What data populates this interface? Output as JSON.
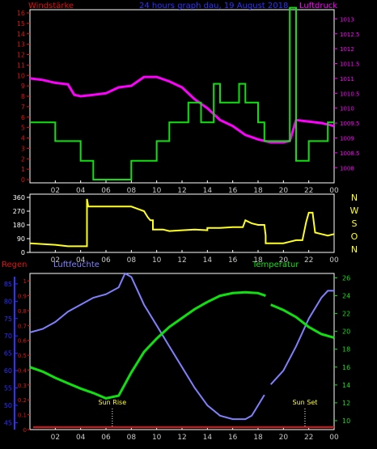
{
  "title": "24 hours graph dau, 19 August  2018",
  "colors": {
    "red": "#e01010",
    "blue": "#3030ff",
    "magenta": "#ff00ff",
    "green": "#10e010",
    "yellow": "#ffff20",
    "periwinkle": "#8080ff",
    "white": "#ffffff",
    "axisText": "#c8c8c8"
  },
  "hour_labels": [
    "02",
    "04",
    "06",
    "08",
    "10",
    "12",
    "14",
    "16",
    "18",
    "20",
    "22",
    "00"
  ],
  "chart_data": [
    {
      "type": "line",
      "title": "24 hours graph dau, 19 August  2018",
      "xlabel": "",
      "x_unit": "hour",
      "xlim": [
        0,
        24
      ],
      "series": [
        {
          "name": "Windstärke",
          "axis": "left",
          "ylim": [
            0,
            16
          ],
          "yticks": [
            0,
            1,
            2,
            3,
            4,
            5,
            6,
            7,
            8,
            9,
            10,
            11,
            12,
            13,
            14,
            15,
            16
          ],
          "step": true,
          "points": [
            [
              0,
              5.5
            ],
            [
              2,
              5.5
            ],
            [
              2,
              3.7
            ],
            [
              4,
              3.7
            ],
            [
              4,
              1.8
            ],
            [
              5,
              1.8
            ],
            [
              5,
              0
            ],
            [
              8,
              0
            ],
            [
              8,
              1.8
            ],
            [
              10,
              1.8
            ],
            [
              10,
              3.7
            ],
            [
              11,
              3.7
            ],
            [
              11,
              5.5
            ],
            [
              12.5,
              5.5
            ],
            [
              12.5,
              7.4
            ],
            [
              13.5,
              7.4
            ],
            [
              13.5,
              5.5
            ],
            [
              14.5,
              5.5
            ],
            [
              14.5,
              9.2
            ],
            [
              15,
              9.2
            ],
            [
              15,
              7.4
            ],
            [
              16.5,
              7.4
            ],
            [
              16.5,
              9.2
            ],
            [
              17,
              9.2
            ],
            [
              17,
              7.4
            ],
            [
              18,
              7.4
            ],
            [
              18,
              5.5
            ],
            [
              18.5,
              5.5
            ],
            [
              18.5,
              3.7
            ],
            [
              20.5,
              3.7
            ],
            [
              20.5,
              16.5
            ],
            [
              21,
              16.5
            ],
            [
              21,
              1.8
            ],
            [
              22,
              1.8
            ],
            [
              22,
              3.7
            ],
            [
              23.5,
              3.7
            ],
            [
              23.5,
              5.5
            ],
            [
              24,
              5.5
            ]
          ]
        },
        {
          "name": "Luftdruck",
          "axis": "right",
          "ylim": [
            1007.6,
            1013.2
          ],
          "yticks": [
            1008,
            1008.5,
            1009,
            1009.5,
            1010,
            1010.5,
            1011,
            1011.5,
            1012,
            1012.5,
            1013
          ],
          "points": [
            [
              0,
              1011
            ],
            [
              1,
              1010.95
            ],
            [
              2,
              1010.85
            ],
            [
              3,
              1010.8
            ],
            [
              3.5,
              1010.45
            ],
            [
              4,
              1010.4
            ],
            [
              5,
              1010.45
            ],
            [
              6,
              1010.5
            ],
            [
              7,
              1010.7
            ],
            [
              8,
              1010.75
            ],
            [
              9,
              1011.05
            ],
            [
              10,
              1011.05
            ],
            [
              11,
              1010.9
            ],
            [
              12,
              1010.7
            ],
            [
              13,
              1010.3
            ],
            [
              14,
              1010
            ],
            [
              15,
              1009.6
            ],
            [
              16,
              1009.4
            ],
            [
              17,
              1009.1
            ],
            [
              18,
              1008.95
            ],
            [
              19,
              1008.85
            ],
            [
              20,
              1008.85
            ],
            [
              20.5,
              1008.9
            ],
            [
              21,
              1009.6
            ],
            [
              22,
              1009.55
            ],
            [
              23,
              1009.5
            ],
            [
              24,
              1009.4
            ]
          ]
        }
      ]
    },
    {
      "type": "line",
      "title": "",
      "xlabel": "",
      "xlim": [
        0,
        24
      ],
      "ylim": [
        0,
        360
      ],
      "yticks": [
        0,
        90,
        180,
        270,
        360
      ],
      "side_labels": [
        "N",
        "W",
        "S",
        "O",
        "N"
      ],
      "series": [
        {
          "name": "",
          "step": true,
          "points": [
            [
              0,
              60
            ],
            [
              2,
              50
            ],
            [
              3,
              40
            ],
            [
              4.5,
              40
            ],
            [
              4.5,
              350
            ],
            [
              4.6,
              300
            ],
            [
              8,
              300
            ],
            [
              8.5,
              285
            ],
            [
              9,
              270
            ],
            [
              9.3,
              230
            ],
            [
              9.5,
              210
            ],
            [
              9.7,
              210
            ],
            [
              9.7,
              150
            ],
            [
              10.5,
              150
            ],
            [
              11,
              140
            ],
            [
              12,
              145
            ],
            [
              13,
              150
            ],
            [
              14,
              145
            ],
            [
              14,
              160
            ],
            [
              15,
              160
            ],
            [
              16,
              165
            ],
            [
              16.8,
              165
            ],
            [
              17,
              210
            ],
            [
              17.5,
              190
            ],
            [
              18,
              180
            ],
            [
              18.3,
              180
            ],
            [
              18.5,
              180
            ],
            [
              18.6,
              110
            ],
            [
              18.6,
              60
            ],
            [
              20,
              60
            ],
            [
              20.5,
              70
            ],
            [
              21,
              80
            ],
            [
              21.5,
              80
            ],
            [
              21.8,
              200
            ],
            [
              22,
              260
            ],
            [
              22.3,
              260
            ],
            [
              22.5,
              130
            ],
            [
              23,
              120
            ],
            [
              23.5,
              110
            ],
            [
              24,
              120
            ]
          ]
        }
      ]
    },
    {
      "type": "line",
      "title": "",
      "xlabel": "",
      "xlim": [
        0,
        24
      ],
      "series": [
        {
          "name": "Regen",
          "axis": "left-outer",
          "ylim": [
            0,
            1.05
          ],
          "points": [
            [
              0,
              0
            ],
            [
              24,
              0
            ]
          ]
        },
        {
          "name": "Luftfeuchte",
          "axis": "left-outer",
          "ylim": [
            43,
            88
          ],
          "yticks": [
            45,
            50,
            55,
            60,
            65,
            70,
            75,
            80,
            85
          ],
          "points": [
            [
              0,
              71
            ],
            [
              1,
              72
            ],
            [
              2,
              74
            ],
            [
              3,
              77
            ],
            [
              4,
              79
            ],
            [
              5,
              81
            ],
            [
              6,
              82
            ],
            [
              7,
              84
            ],
            [
              7.5,
              88
            ],
            [
              8,
              87
            ],
            [
              8.5,
              83
            ],
            [
              9,
              79
            ],
            [
              10,
              73
            ],
            [
              11,
              67
            ],
            [
              12,
              61
            ],
            [
              13,
              55
            ],
            [
              14,
              50
            ],
            [
              15,
              47
            ],
            [
              16,
              46
            ],
            [
              17,
              46
            ],
            [
              17.5,
              47
            ],
            [
              18,
              50
            ],
            [
              18.5,
              53
            ]
          ],
          "points_b": [
            [
              19,
              56
            ],
            [
              20,
              60
            ],
            [
              21,
              67
            ],
            [
              22,
              75
            ],
            [
              23,
              81
            ],
            [
              23.5,
              83
            ],
            [
              24,
              83
            ]
          ]
        },
        {
          "name": "Temperatur",
          "axis": "right",
          "ylim": [
            9,
            26.5
          ],
          "yticks": [
            10,
            12,
            14,
            16,
            18,
            20,
            22,
            24,
            26
          ],
          "points": [
            [
              0,
              16
            ],
            [
              1,
              15.5
            ],
            [
              2,
              14.8
            ],
            [
              3,
              14.2
            ],
            [
              4,
              13.6
            ],
            [
              5,
              13.1
            ],
            [
              6,
              12.5
            ],
            [
              7,
              12.8
            ],
            [
              8,
              15.4
            ],
            [
              9,
              17.7
            ],
            [
              10,
              19.2
            ],
            [
              11,
              20.5
            ],
            [
              12,
              21.5
            ],
            [
              13,
              22.5
            ],
            [
              14,
              23.3
            ],
            [
              15,
              24.0
            ],
            [
              16,
              24.3
            ],
            [
              17,
              24.4
            ],
            [
              18,
              24.3
            ],
            [
              18.6,
              24.0
            ]
          ],
          "points_b": [
            [
              19,
              23
            ],
            [
              20,
              22.4
            ],
            [
              21,
              21.6
            ],
            [
              22,
              20.5
            ],
            [
              23,
              19.7
            ],
            [
              24,
              19.3
            ]
          ]
        }
      ],
      "annotations": [
        {
          "text": "Sun Rise",
          "x": 6.5
        },
        {
          "text": "Sun Set",
          "x": 21.7
        }
      ]
    }
  ],
  "labels": {
    "windstaerke": "Windstärke",
    "luftdruck": "Luftdruck",
    "regen": "Regen",
    "luftfeuchte": "Luftfeuchte",
    "temperatur": "Temperatur"
  }
}
